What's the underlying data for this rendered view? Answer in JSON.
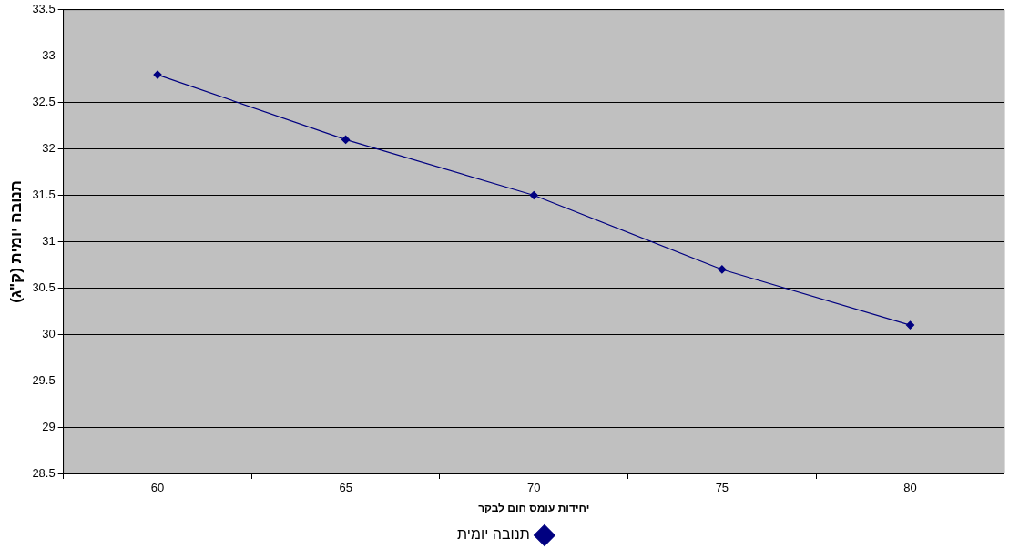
{
  "chart_data": {
    "type": "line",
    "xlabel": "יחידות עומס חום לבקר",
    "ylabel": "תנובה יומית (ק\"ג)",
    "categories": [
      "60",
      "65",
      "70",
      "75",
      "80"
    ],
    "series": [
      {
        "name": "תנובה יומית",
        "color": "#000080",
        "values": [
          32.8,
          32.1,
          31.5,
          30.7,
          30.1
        ]
      }
    ],
    "ylim": [
      28.5,
      33.5
    ],
    "yticks": [
      28.5,
      29,
      29.5,
      30,
      30.5,
      31,
      31.5,
      32,
      32.5,
      33,
      33.5
    ],
    "grid": "y",
    "legend": "bottom",
    "marker": "diamond",
    "line_style": "solid"
  }
}
